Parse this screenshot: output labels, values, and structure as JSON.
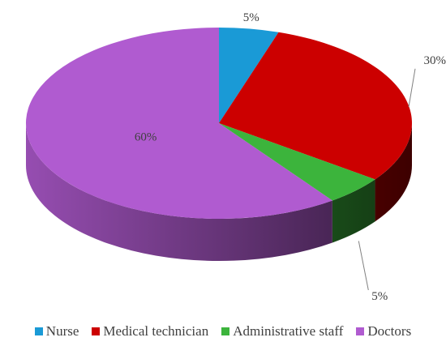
{
  "chart_data": {
    "type": "pie",
    "style": "3d",
    "categories": [
      "Nurse",
      "Medical technician",
      "Administrative staff",
      "Doctors"
    ],
    "values": [
      5,
      30,
      5,
      60
    ],
    "data_labels": [
      "5%",
      "30%",
      "5%",
      "60%"
    ],
    "colors": [
      "#1a9ad6",
      "#cc0000",
      "#3cb43c",
      "#b05bd0"
    ],
    "legend_position": "bottom"
  }
}
